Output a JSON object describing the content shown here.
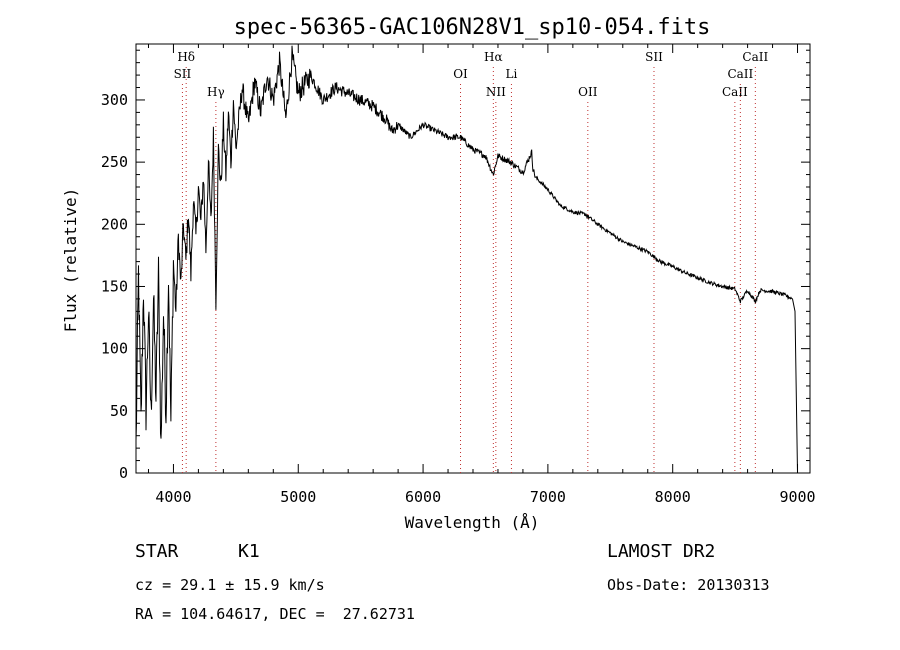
{
  "chart_data": {
    "type": "line",
    "title": "spec-56365-GAC106N28V1_sp10-054.fits",
    "xlabel": "Wavelength (Å)",
    "ylabel": "Flux (relative)",
    "xlim": [
      3700,
      9100
    ],
    "ylim": [
      0,
      345
    ],
    "xticks": [
      4000,
      5000,
      6000,
      7000,
      8000,
      9000
    ],
    "yticks": [
      0,
      50,
      100,
      150,
      200,
      250,
      300
    ],
    "grid": false,
    "series": [
      {
        "x": [
          3700,
          3720,
          3740,
          3760,
          3780,
          3800,
          3820,
          3840,
          3860,
          3880,
          3900,
          3920,
          3940,
          3960,
          3980,
          4000,
          4020,
          4040,
          4060,
          4080,
          4100,
          4120,
          4140,
          4160,
          4180,
          4200,
          4220,
          4240,
          4260,
          4280,
          4300,
          4320,
          4340,
          4360,
          4380,
          4400,
          4420,
          4440,
          4460,
          4480,
          4500,
          4550,
          4600,
          4650,
          4700,
          4750,
          4800,
          4850,
          4900,
          4950,
          5000,
          5100,
          5200,
          5300,
          5400,
          5500,
          5600,
          5700,
          5750,
          5800,
          5900,
          6000,
          6100,
          6200,
          6300,
          6400,
          6500,
          6562,
          6600,
          6700,
          6800,
          6870,
          6880,
          6900,
          7000,
          7100,
          7200,
          7300,
          7400,
          7500,
          7600,
          7700,
          7800,
          7900,
          8000,
          8100,
          8200,
          8300,
          8400,
          8500,
          8542,
          8600,
          8662,
          8700,
          8800,
          8900,
          8960,
          8980,
          9000
        ],
        "y": [
          20,
          160,
          40,
          150,
          50,
          130,
          45,
          140,
          60,
          160,
          20,
          130,
          50,
          160,
          40,
          170,
          130,
          190,
          150,
          200,
          170,
          210,
          160,
          220,
          190,
          230,
          200,
          240,
          180,
          250,
          200,
          270,
          140,
          260,
          230,
          280,
          240,
          290,
          250,
          300,
          260,
          310,
          280,
          315,
          290,
          320,
          300,
          330,
          285,
          335,
          305,
          320,
          300,
          310,
          305,
          300,
          295,
          285,
          275,
          280,
          270,
          280,
          275,
          270,
          270,
          260,
          255,
          240,
          255,
          250,
          242,
          258,
          245,
          238,
          228,
          215,
          210,
          208,
          200,
          193,
          186,
          182,
          178,
          170,
          166,
          161,
          157,
          153,
          150,
          148,
          138,
          147,
          138,
          147,
          146,
          143,
          140,
          130,
          0
        ]
      }
    ],
    "line_markers": [
      {
        "label": "Hδ",
        "x": 4102,
        "row": 1
      },
      {
        "label": "SII",
        "x": 4072,
        "row": 2
      },
      {
        "label": "Hγ",
        "x": 4340,
        "row": 3
      },
      {
        "label": "OI",
        "x": 6300,
        "row": 2
      },
      {
        "label": "Hα",
        "x": 6563,
        "row": 1
      },
      {
        "label": "NII",
        "x": 6583,
        "row": 3
      },
      {
        "label": "Li",
        "x": 6708,
        "row": 2
      },
      {
        "label": "OII",
        "x": 7320,
        "row": 3
      },
      {
        "label": "SII",
        "x": 7850,
        "row": 1
      },
      {
        "label": "CaII",
        "x": 8498,
        "row": 3
      },
      {
        "label": "CaII",
        "x": 8542,
        "row": 2
      },
      {
        "label": "CaII",
        "x": 8662,
        "row": 1
      }
    ]
  },
  "info": {
    "object_class": "STAR",
    "subclass": "K1",
    "survey": "LAMOST DR2",
    "cz": "cz = 29.1 ± 15.9 km/s",
    "obs_date": "Obs-Date: 20130313",
    "coords": "RA = 104.64617, DEC =  27.62731"
  }
}
